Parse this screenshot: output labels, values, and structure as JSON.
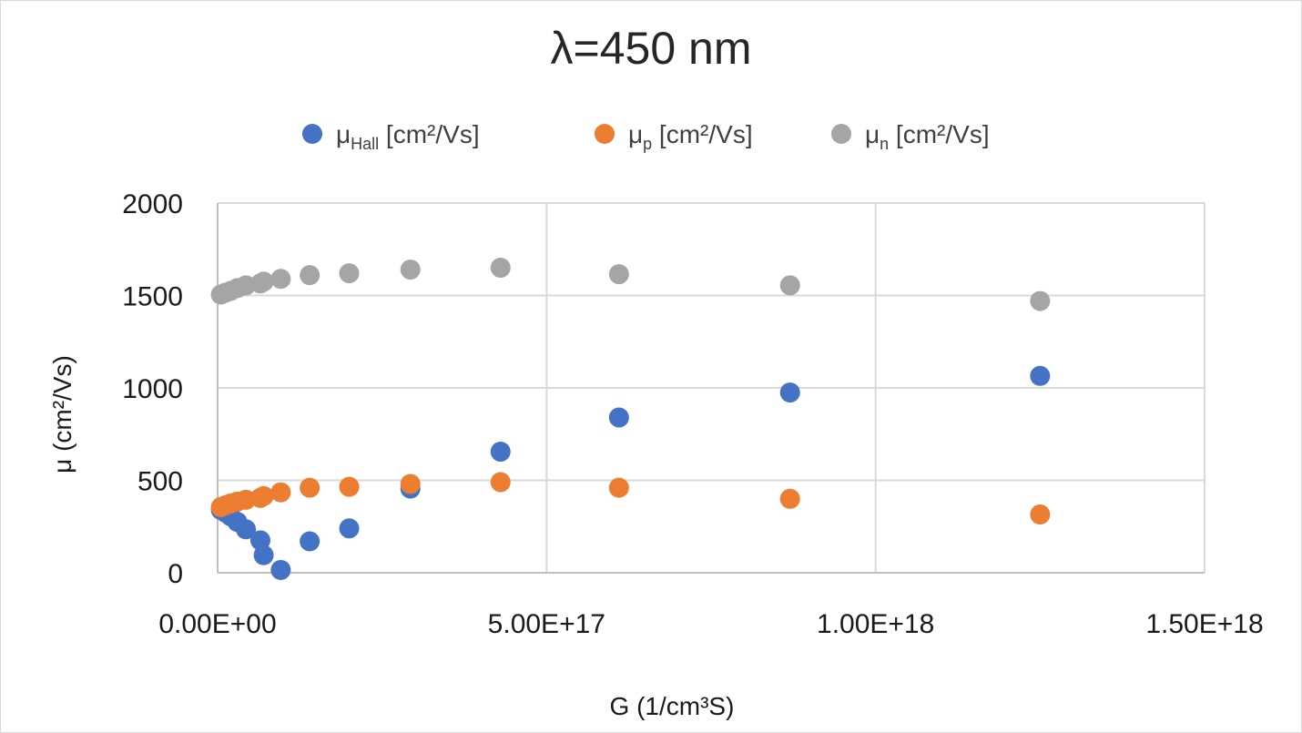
{
  "chart_data": {
    "type": "scatter",
    "title": "λ=450 nm",
    "xlabel": "G (1/cm³S)",
    "ylabel": "μ (cm²/Vs)",
    "xlim": [
      0,
      1.5e+18
    ],
    "ylim": [
      0,
      2000
    ],
    "x_ticks": [
      0,
      5e+17,
      1e+18,
      1.5e+18
    ],
    "x_tick_labels": [
      "0.00E+00",
      "5.00E+17",
      "1.00E+18",
      "1.50E+18"
    ],
    "y_ticks": [
      0,
      500,
      1000,
      1500,
      2000
    ],
    "y_tick_labels": [
      "0",
      "500",
      "1000",
      "1500",
      "2000"
    ],
    "grid": true,
    "legend_position": "top",
    "series": [
      {
        "name": "μHall [cm²/Vs]",
        "legend_main": "μ",
        "legend_sub": "Hall",
        "legend_unit": " [cm²/Vs]",
        "color": "#4472C4",
        "points": [
          [
            5000000000000000.0,
            340
          ],
          [
            1.2e+16,
            325
          ],
          [
            2e+16,
            305
          ],
          [
            3e+16,
            275
          ],
          [
            4.3e+16,
            235
          ],
          [
            6.5e+16,
            175
          ],
          [
            7e+16,
            95
          ],
          [
            9.6e+16,
            15
          ],
          [
            1.4e+17,
            170
          ],
          [
            2e+17,
            240
          ],
          [
            2.93e+17,
            455
          ],
          [
            4.3e+17,
            655
          ],
          [
            6.1e+17,
            840
          ],
          [
            8.7e+17,
            975
          ],
          [
            1.25e+18,
            1065
          ]
        ]
      },
      {
        "name": "μp [cm²/Vs]",
        "legend_main": "μ",
        "legend_sub": "p",
        "legend_unit": " [cm²/Vs]",
        "color": "#ED7D31",
        "points": [
          [
            5000000000000000.0,
            355
          ],
          [
            1.2e+16,
            365
          ],
          [
            2e+16,
            375
          ],
          [
            3e+16,
            385
          ],
          [
            4.3e+16,
            395
          ],
          [
            6.5e+16,
            405
          ],
          [
            7e+16,
            415
          ],
          [
            9.6e+16,
            435
          ],
          [
            1.4e+17,
            460
          ],
          [
            2e+17,
            465
          ],
          [
            2.93e+17,
            480
          ],
          [
            4.3e+17,
            490
          ],
          [
            6.1e+17,
            460
          ],
          [
            8.7e+17,
            400
          ],
          [
            1.25e+18,
            315
          ]
        ]
      },
      {
        "name": "μn [cm²/Vs]",
        "legend_main": "μ",
        "legend_sub": "n",
        "legend_unit": " [cm²/Vs]",
        "color": "#A5A5A5",
        "points": [
          [
            5000000000000000.0,
            1505
          ],
          [
            1.2e+16,
            1515
          ],
          [
            2e+16,
            1525
          ],
          [
            3e+16,
            1540
          ],
          [
            4.3e+16,
            1555
          ],
          [
            6.5e+16,
            1565
          ],
          [
            7e+16,
            1575
          ],
          [
            9.6e+16,
            1590
          ],
          [
            1.4e+17,
            1610
          ],
          [
            2e+17,
            1620
          ],
          [
            2.93e+17,
            1640
          ],
          [
            4.3e+17,
            1650
          ],
          [
            6.1e+17,
            1615
          ],
          [
            8.7e+17,
            1555
          ],
          [
            1.25e+18,
            1470
          ]
        ]
      }
    ]
  }
}
